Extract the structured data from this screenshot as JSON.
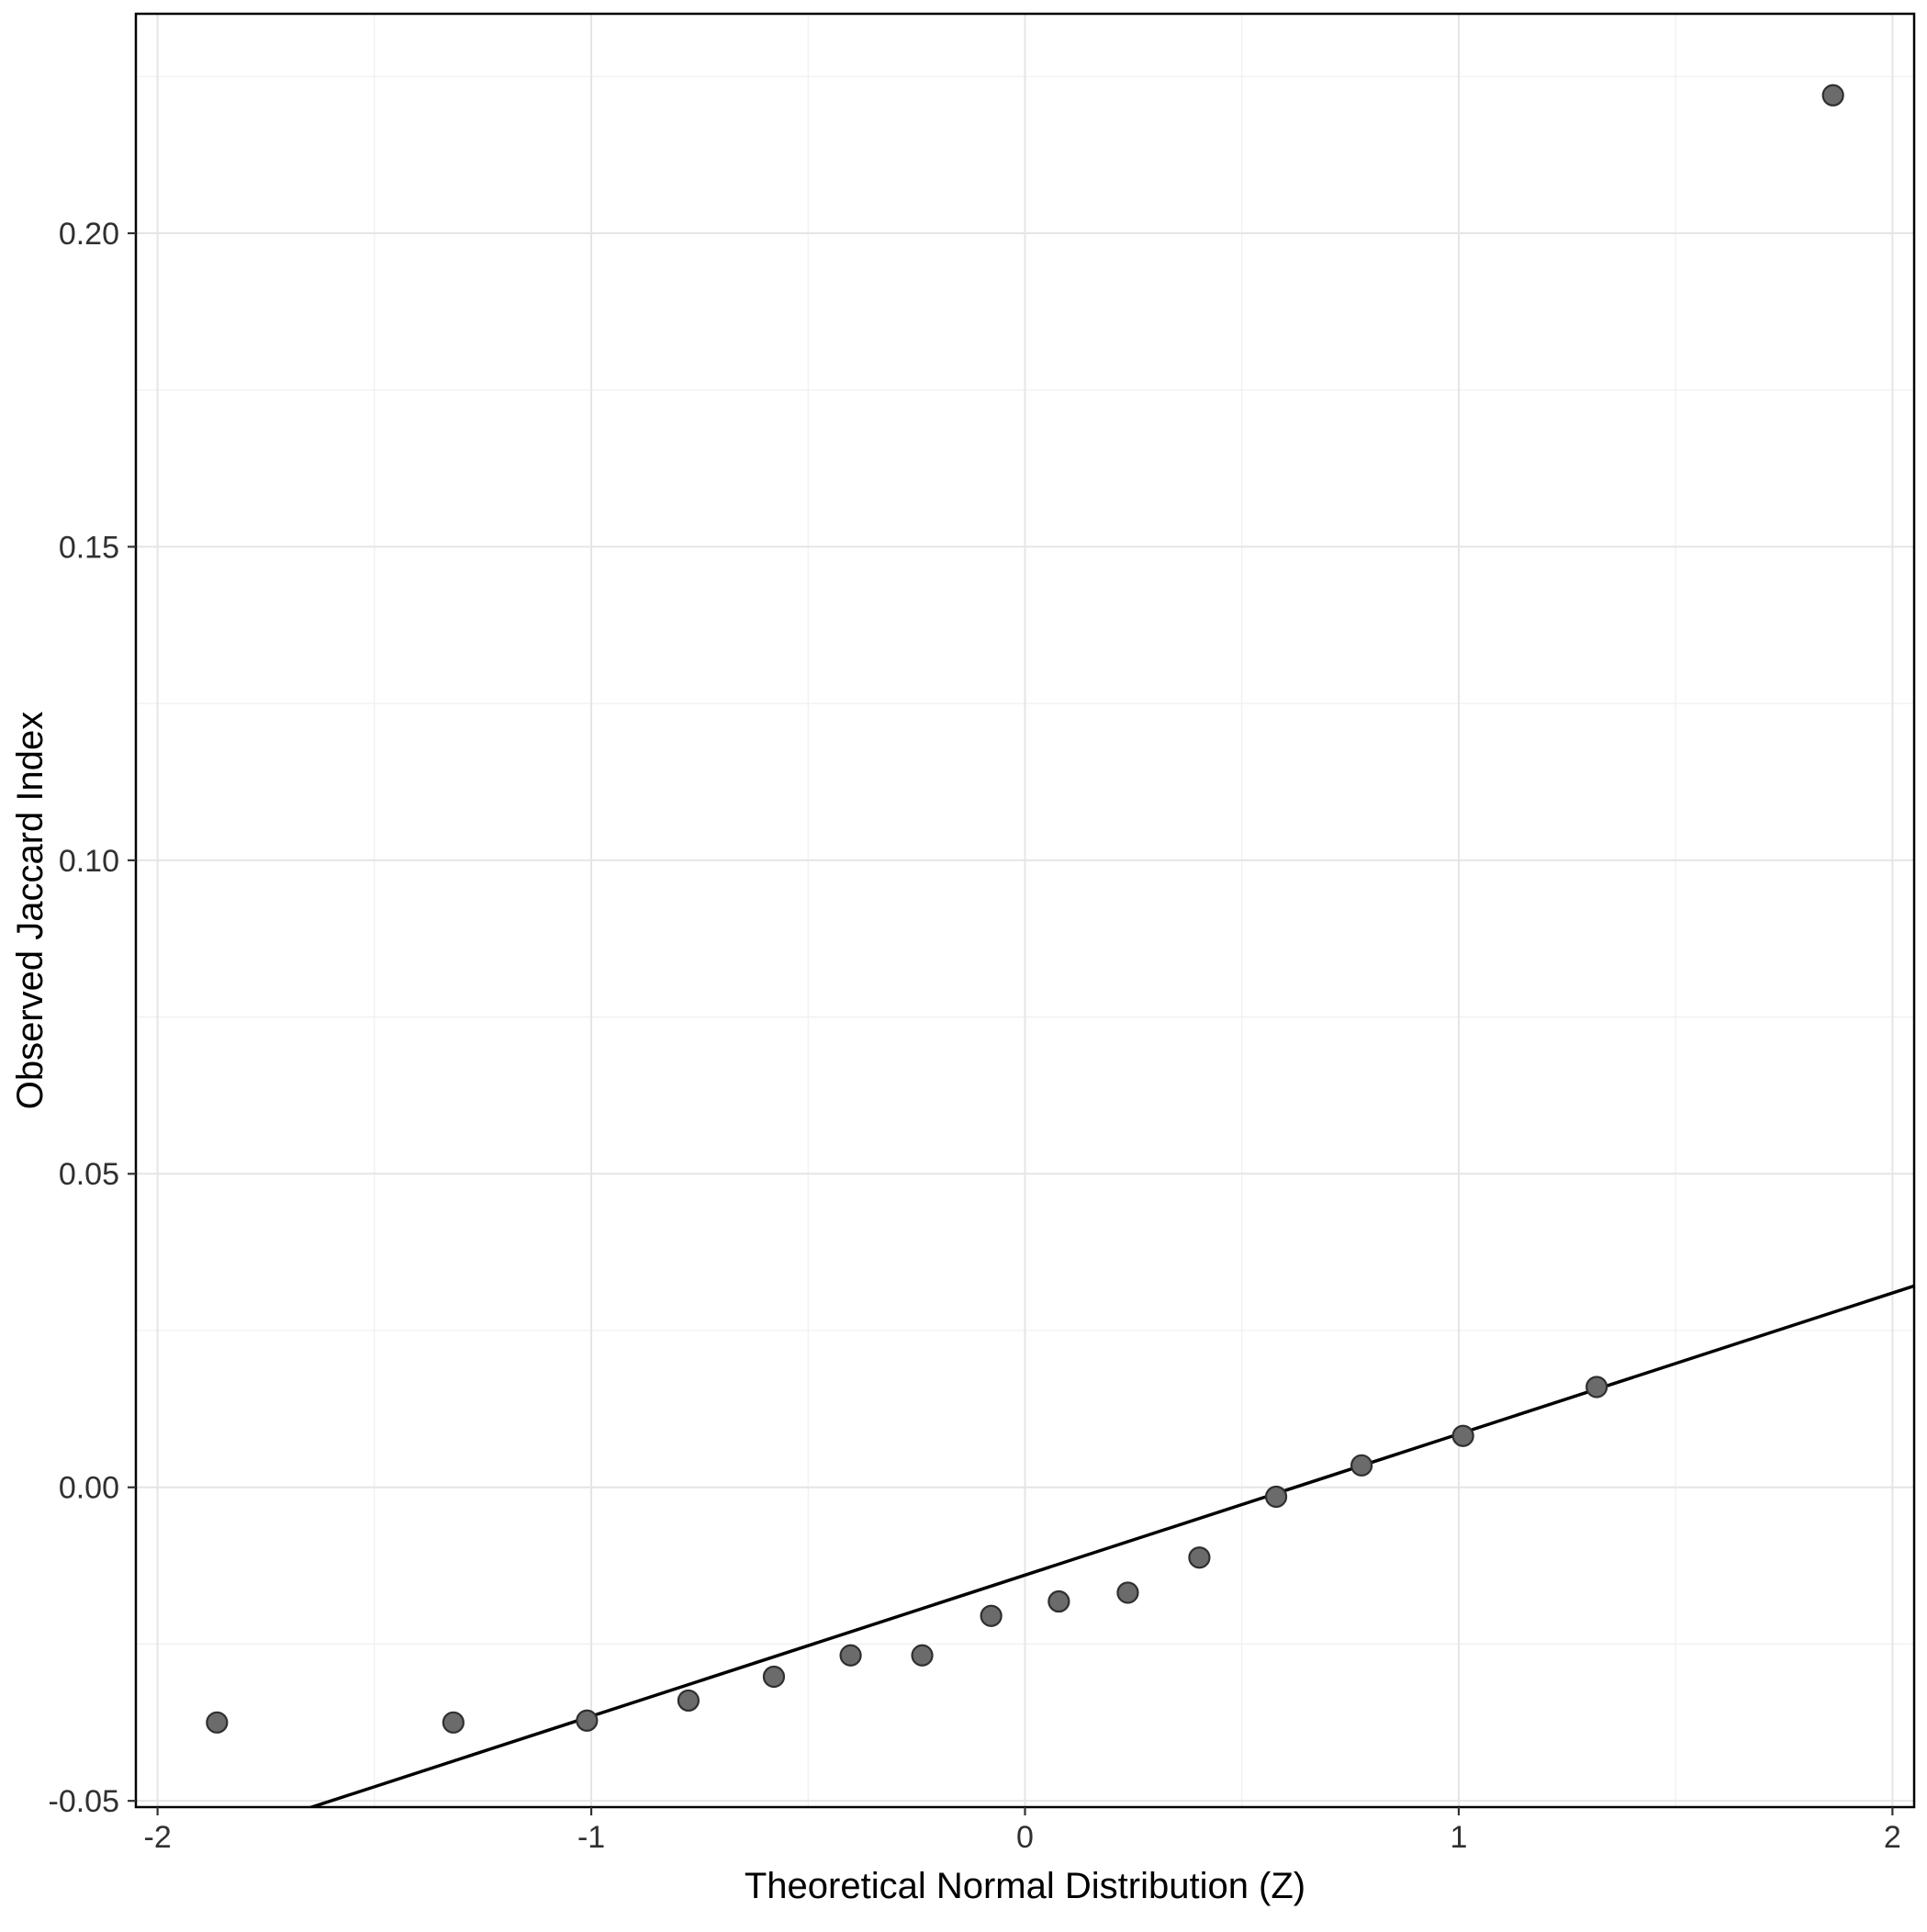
{
  "figure": {
    "background": "#FFFFFF",
    "panel_background": "#FFFFFF",
    "panel_border_color": "#000000",
    "grid_major_color": "#E5E5E5",
    "grid_minor_color": "#F0F0F0",
    "point_fill": "#6B6B6B",
    "point_stroke": "#2F2F2F",
    "line_color": "#000000",
    "tick_color": "#333333",
    "tick_label_color": "#303030",
    "axis_title_color": "#000000"
  },
  "chart_data": {
    "type": "scatter",
    "title": "",
    "xlabel": "Theoretical Normal Distribution (Z)",
    "ylabel": "Observed Jaccard Index",
    "xlim": [
      -2.05,
      2.05
    ],
    "ylim": [
      -0.051,
      0.235
    ],
    "grid": true,
    "legend": "none",
    "x_ticks": {
      "values": [
        -2,
        -1,
        0,
        1,
        2
      ],
      "labels": [
        "-2",
        "-1",
        "0",
        "1",
        "2"
      ]
    },
    "y_ticks": {
      "values": [
        -0.05,
        0,
        0.05,
        0.1,
        0.15,
        0.2
      ],
      "labels": [
        "-0.05",
        "0.00",
        "0.05",
        "0.10",
        "0.15",
        "0.20"
      ]
    },
    "points": [
      [
        -1.863,
        -0.0375
      ],
      [
        -1.318,
        -0.0375
      ],
      [
        -1.01,
        -0.0372
      ],
      [
        -0.776,
        -0.034
      ],
      [
        -0.579,
        -0.0302
      ],
      [
        -0.402,
        -0.0268
      ],
      [
        -0.237,
        -0.0268
      ],
      [
        -0.078,
        -0.0205
      ],
      [
        0.078,
        -0.0182
      ],
      [
        0.237,
        -0.0168
      ],
      [
        0.402,
        -0.0112
      ],
      [
        0.579,
        -0.0015
      ],
      [
        0.776,
        0.0035
      ],
      [
        1.01,
        0.0082
      ],
      [
        1.318,
        0.016
      ],
      [
        1.863,
        0.222
      ]
    ],
    "reference_line": {
      "slope": 0.0225,
      "intercept": -0.014
    }
  }
}
